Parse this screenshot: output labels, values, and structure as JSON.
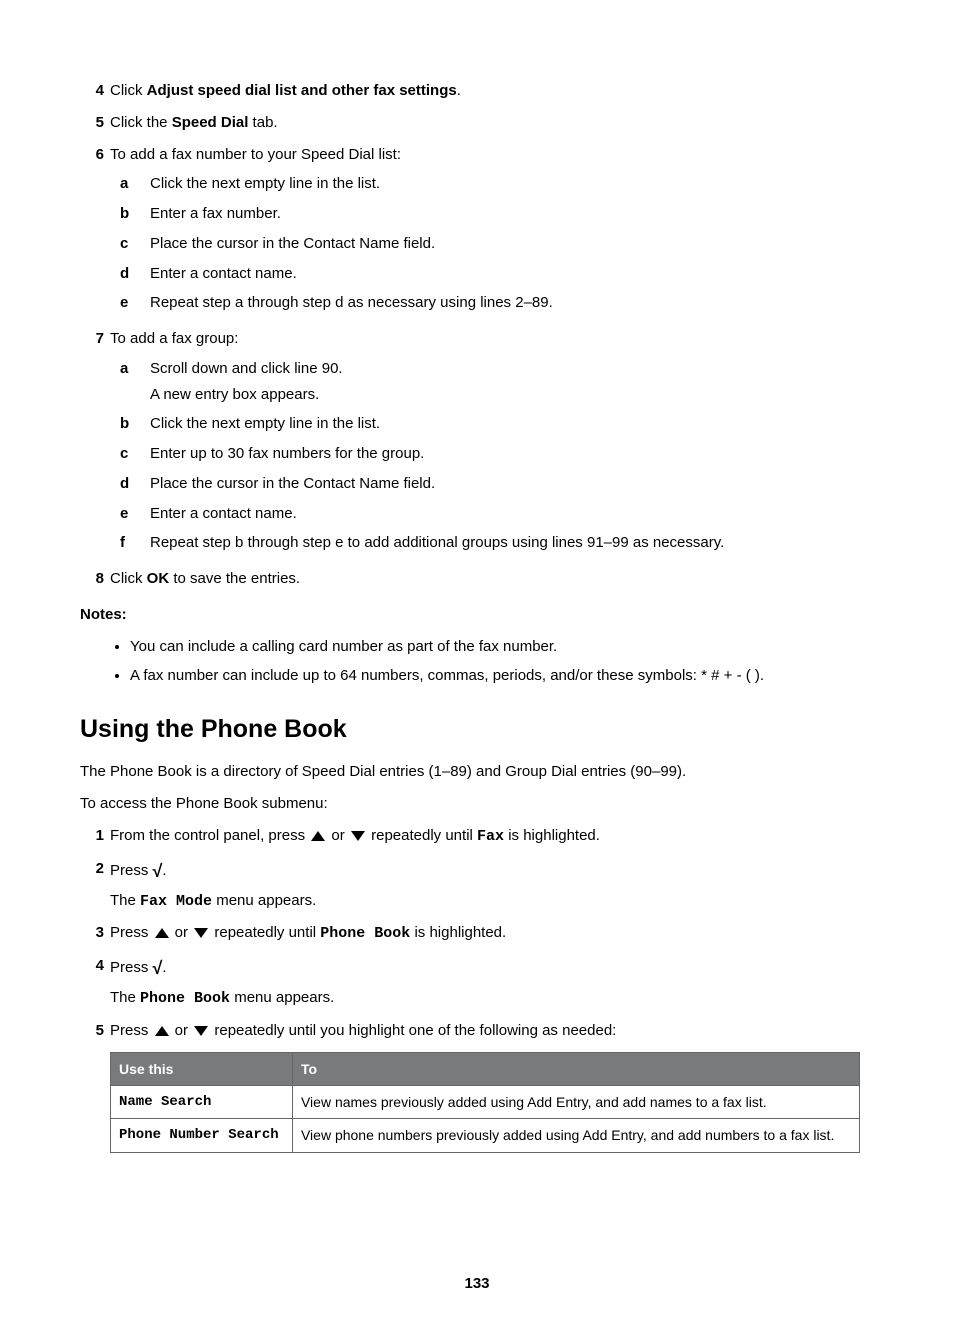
{
  "steps_top": [
    {
      "num": "4",
      "parts": [
        {
          "t": "Click "
        },
        {
          "t": "Adjust speed dial list and other fax settings",
          "b": true
        },
        {
          "t": "."
        }
      ]
    },
    {
      "num": "5",
      "parts": [
        {
          "t": "Click the "
        },
        {
          "t": "Speed Dial",
          "b": true
        },
        {
          "t": " tab."
        }
      ]
    },
    {
      "num": "6",
      "parts": [
        {
          "t": "To add a fax number to your Speed Dial list:"
        }
      ],
      "subs": [
        {
          "l": "a",
          "t": "Click the next empty line in the list."
        },
        {
          "l": "b",
          "t": "Enter a fax number."
        },
        {
          "l": "c",
          "t": "Place the cursor in the Contact Name field."
        },
        {
          "l": "d",
          "t": "Enter a contact name."
        },
        {
          "l": "e",
          "t": "Repeat step a through step d as necessary using lines 2–89."
        }
      ]
    },
    {
      "num": "7",
      "parts": [
        {
          "t": "To add a fax group:"
        }
      ],
      "subs": [
        {
          "l": "a",
          "t": "Scroll down and click line 90.",
          "extra": "A new entry box appears."
        },
        {
          "l": "b",
          "t": "Click the next empty line in the list."
        },
        {
          "l": "c",
          "t": "Enter up to 30 fax numbers for the group."
        },
        {
          "l": "d",
          "t": "Place the cursor in the Contact Name field."
        },
        {
          "l": "e",
          "t": "Enter a contact name."
        },
        {
          "l": "f",
          "t": "Repeat step b through step e to add additional groups using lines 91–99 as necessary."
        }
      ]
    },
    {
      "num": "8",
      "parts": [
        {
          "t": "Click "
        },
        {
          "t": "OK",
          "b": true
        },
        {
          "t": " to save the entries."
        }
      ]
    }
  ],
  "notes_label": "Notes:",
  "notes": [
    "You can include a calling card number as part of the fax number.",
    "A fax number can include up to 64 numbers, commas, periods, and/or these symbols: * # + - ( )."
  ],
  "section_heading": "Using the Phone Book",
  "intro1": "The Phone Book is a directory of Speed Dial entries (1–89) and Group Dial entries (90–99).",
  "intro2": "To access the Phone Book submenu:",
  "pb_steps": {
    "s1_a": "From the control panel, press ",
    "s1_b": " or ",
    "s1_c": " repeatedly until ",
    "s1_fax": "Fax",
    "s1_d": " is highlighted.",
    "s2_a": "Press ",
    "s2_b": ".",
    "s2_after_a": "The ",
    "s2_after_mono": "Fax Mode",
    "s2_after_b": " menu appears.",
    "s3_a": "Press ",
    "s3_b": " or ",
    "s3_c": " repeatedly until ",
    "s3_mono": "Phone Book",
    "s3_d": " is highlighted.",
    "s4_a": "Press ",
    "s4_b": ".",
    "s4_after_a": "The ",
    "s4_after_mono": "Phone Book",
    "s4_after_b": " menu appears.",
    "s5_a": "Press ",
    "s5_b": " or ",
    "s5_c": " repeatedly until you highlight one of the following as needed:"
  },
  "table": {
    "h1": "Use this",
    "h2": "To",
    "rows": [
      {
        "k": "Name Search",
        "v": "View names previously added using Add Entry, and add names to a fax list."
      },
      {
        "k": "Phone Number Search",
        "v": "View phone numbers previously added using Add Entry, and add numbers to a fax list."
      }
    ]
  },
  "page_number": "133"
}
